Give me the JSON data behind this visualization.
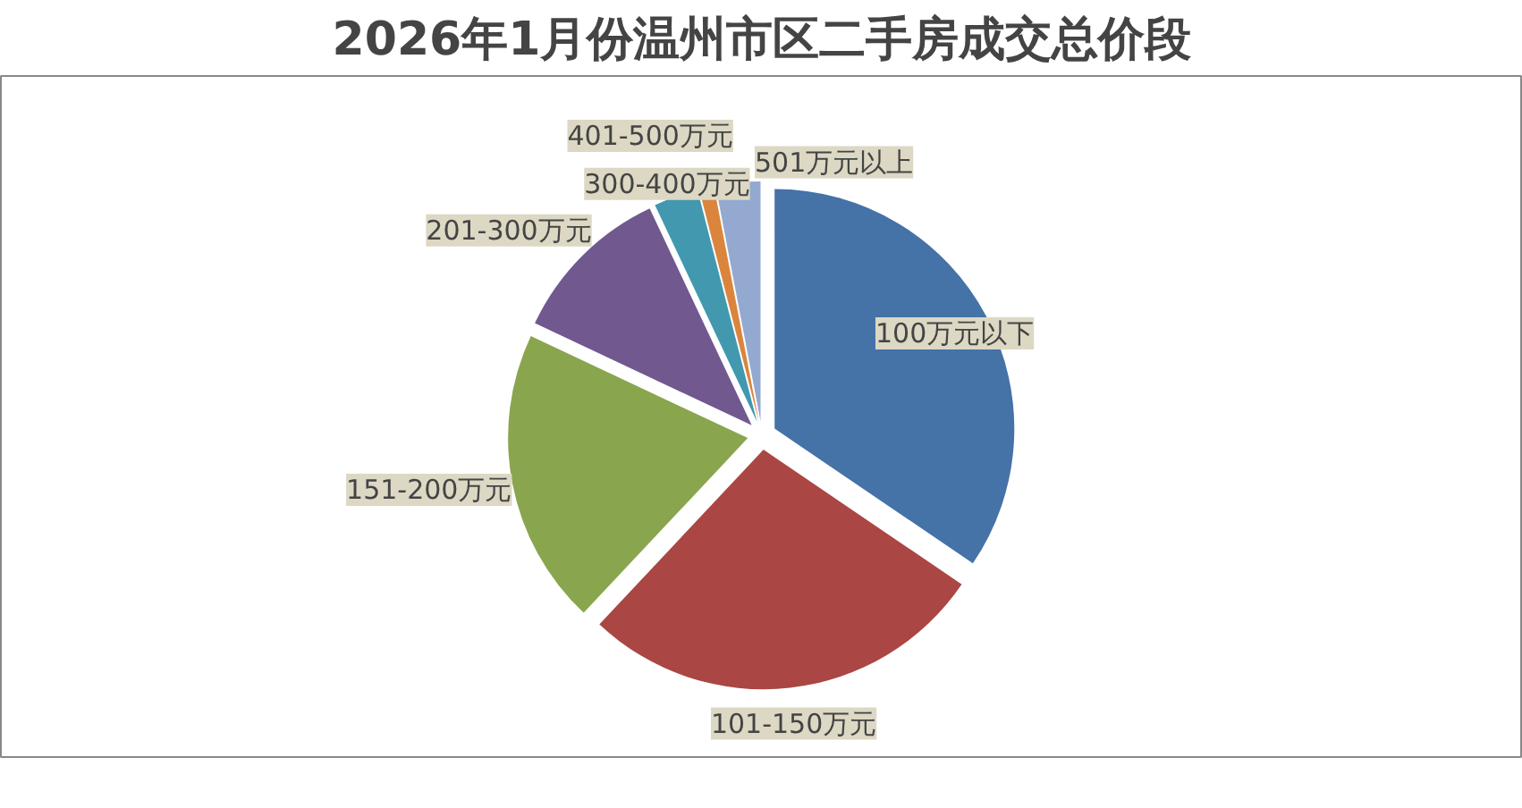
{
  "chart_data": {
    "type": "pie",
    "title": "2026年1月份温州市区二手房成交总价段",
    "categories": [
      "100万元以下",
      "101-150万元",
      "151-200万元",
      "201-300万元",
      "300-400万元",
      "401-500万元",
      "501万元以上"
    ],
    "values": [
      34.5,
      27.5,
      20,
      11,
      3,
      1,
      3
    ],
    "colors": [
      "#4572a7",
      "#aa4643",
      "#89a54e",
      "#71588f",
      "#4198af",
      "#db843d",
      "#93a9cf"
    ]
  }
}
